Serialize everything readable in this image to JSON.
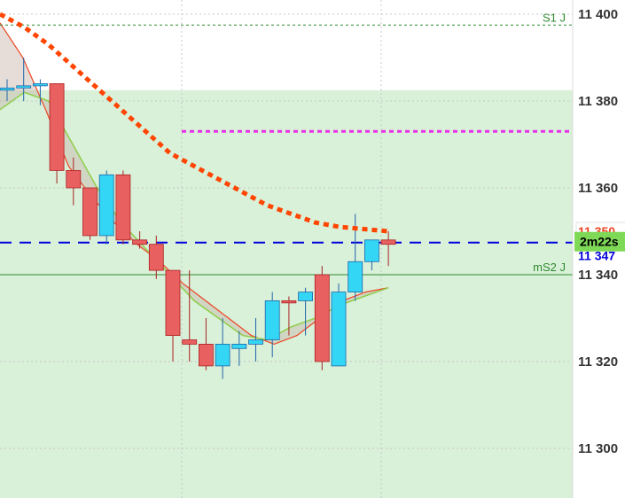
{
  "chart_data": {
    "type": "candlestick",
    "title": "",
    "y_axis": {
      "ticks": [
        11400,
        11380,
        11360,
        11340,
        11320,
        11300
      ],
      "ylim": [
        11289,
        11403
      ]
    },
    "candles": [
      {
        "o": 11382.5,
        "h": 11385,
        "l": 11380,
        "c": 11383
      },
      {
        "o": 11383,
        "h": 11390,
        "l": 11380,
        "c": 11383.5
      },
      {
        "o": 11383.5,
        "h": 11385,
        "l": 11379,
        "c": 11384
      },
      {
        "o": 11384,
        "h": 11384,
        "l": 11361,
        "c": 11364
      },
      {
        "o": 11364,
        "h": 11367,
        "l": 11356,
        "c": 11360
      },
      {
        "o": 11360,
        "h": 11360,
        "l": 11348,
        "c": 11349
      },
      {
        "o": 11349,
        "h": 11364,
        "l": 11347,
        "c": 11363
      },
      {
        "o": 11363,
        "h": 11364,
        "l": 11347,
        "c": 11348
      },
      {
        "o": 11348,
        "h": 11350,
        "l": 11346,
        "c": 11347
      },
      {
        "o": 11347,
        "h": 11349,
        "l": 11339,
        "c": 11341
      },
      {
        "o": 11341,
        "h": 11341,
        "l": 11320,
        "c": 11326
      },
      {
        "o": 11325,
        "h": 11341,
        "l": 11320,
        "c": 11324
      },
      {
        "o": 11324,
        "h": 11330,
        "l": 11318,
        "c": 11319
      },
      {
        "o": 11319,
        "h": 11330,
        "l": 11316,
        "c": 11324
      },
      {
        "o": 11323,
        "h": 11327,
        "l": 11319,
        "c": 11324
      },
      {
        "o": 11324,
        "h": 11330,
        "l": 11320,
        "c": 11325
      },
      {
        "o": 11325,
        "h": 11336,
        "l": 11321,
        "c": 11334
      },
      {
        "o": 11334,
        "h": 11335,
        "l": 11326,
        "c": 11333.5
      },
      {
        "o": 11334,
        "h": 11337,
        "l": 11326,
        "c": 11336
      },
      {
        "o": 11340,
        "h": 11342,
        "l": 11318,
        "c": 11320
      },
      {
        "o": 11319,
        "h": 11338,
        "l": 11319,
        "c": 11336
      },
      {
        "o": 11336,
        "h": 11354,
        "l": 11334,
        "c": 11343
      },
      {
        "o": 11343,
        "h": 11348,
        "l": 11341,
        "c": 11348
      },
      {
        "o": 11348,
        "h": 11350,
        "l": 11342,
        "c": 11347
      }
    ],
    "lines": {
      "ma_red_dotted": [
        11400,
        11397,
        11393,
        11388,
        11383,
        11378,
        11373,
        11368,
        11365,
        11362,
        11359,
        11356,
        11354,
        11352,
        11351,
        11350.5,
        11350
      ],
      "band_upper": [
        11398,
        11390,
        11378,
        11365,
        11358,
        11352,
        11347,
        11343,
        11338,
        11334,
        11330,
        11326,
        11324,
        11326,
        11330,
        11334,
        11336,
        11337
      ],
      "band_lower": [
        11378,
        11382,
        11380,
        11370,
        11360,
        11352,
        11346,
        11340,
        11334,
        11330,
        11326,
        11325,
        11328,
        11330,
        11333,
        11335,
        11337
      ]
    },
    "levels": [
      {
        "name": "S1 J",
        "value": 11397.5,
        "color": "#2e8b2e",
        "style": "dotted"
      },
      {
        "name": "mS2 J",
        "value": 11340,
        "color": "#2e8b2e",
        "style": "solid"
      },
      {
        "name": "",
        "value": 11373,
        "color": "#e830e8",
        "style": "dotted"
      },
      {
        "name": "",
        "value": 11347.4,
        "color": "#0000dd",
        "style": "dashed"
      }
    ],
    "zone": {
      "from": 11289,
      "to": 11382.5,
      "color": "#d9f0d9"
    },
    "price_labels": {
      "upper": "11 350",
      "countdown": "2m22s",
      "current": "11 347"
    },
    "colors": {
      "bull": "#33d6f5",
      "bear": "#e86060",
      "band_fill": "#c8b4a8",
      "ma": "#ff4500",
      "lower_band": "#8ecf4a"
    }
  }
}
